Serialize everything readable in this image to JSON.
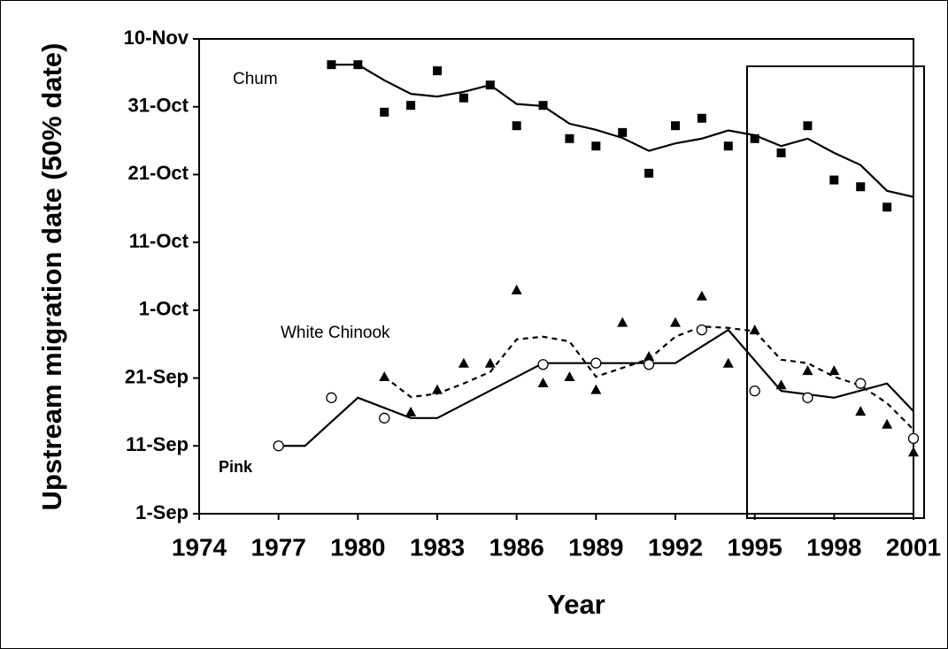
{
  "chart_data": {
    "type": "scatter",
    "xlabel": "Year",
    "ylabel": "Upstream migration date (50% date)",
    "xlim": [
      1974,
      2001
    ],
    "xticks": [
      1974,
      1977,
      1980,
      1983,
      1986,
      1989,
      1992,
      1995,
      1998,
      2001
    ],
    "ylim": [
      0,
      70
    ],
    "yticks": [
      {
        "value": 0,
        "label": "1-Sep"
      },
      {
        "value": 10,
        "label": "11-Sep"
      },
      {
        "value": 20,
        "label": "21-Sep"
      },
      {
        "value": 30,
        "label": "1-Oct"
      },
      {
        "value": 40,
        "label": "11-Oct"
      },
      {
        "value": 50,
        "label": "21-Oct"
      },
      {
        "value": 60,
        "label": "31-Oct"
      },
      {
        "value": 70,
        "label": "10-Nov"
      }
    ],
    "series": [
      {
        "name": "Chum",
        "color": "#000000",
        "marker": "square",
        "trend_style": "solid",
        "x": [
          1979,
          1980,
          1981,
          1982,
          1983,
          1984,
          1985,
          1986,
          1987,
          1988,
          1989,
          1990,
          1991,
          1992,
          1993,
          1994,
          1995,
          1996,
          1997,
          1998,
          1999,
          2000
        ],
        "values": [
          66.2,
          66.2,
          59.2,
          60.2,
          65.3,
          61.3,
          63.2,
          57.2,
          60.2,
          55.3,
          54.2,
          56.2,
          50.2,
          57.2,
          58.3,
          54.2,
          55.3,
          53.2,
          57.2,
          49.2,
          48.2,
          45.2
        ],
        "trend_x": [
          1979,
          1980,
          1981,
          1982,
          1983,
          1984,
          1985,
          1986,
          1987,
          1988,
          1989,
          1990,
          1991,
          1992,
          1993,
          1994,
          1995,
          1996,
          1997,
          1998,
          1999,
          2000,
          2001
        ],
        "trend": [
          66.2,
          66.2,
          63.9,
          61.9,
          61.5,
          62.2,
          63.2,
          60.4,
          60.1,
          57.5,
          56.6,
          55.4,
          53.5,
          54.6,
          55.3,
          56.5,
          55.8,
          54.2,
          55.3,
          53.2,
          51.4,
          47.6,
          46.7
        ]
      },
      {
        "name": "White Chinook",
        "color": "#000000",
        "marker": "triangle",
        "trend_style": "dashed",
        "x": [
          1981,
          1982,
          1983,
          1984,
          1985,
          1986,
          1987,
          1988,
          1989,
          1990,
          1991,
          1992,
          1993,
          1994,
          1995,
          1996,
          1997,
          1998,
          1999,
          2000,
          2001
        ],
        "values": [
          20.2,
          15.0,
          18.3,
          22.2,
          22.2,
          33.0,
          19.3,
          20.2,
          18.3,
          28.2,
          23.2,
          28.2,
          32.1,
          22.2,
          27.1,
          19.0,
          21.1,
          21.1,
          15.1,
          13.2,
          9.1
        ],
        "trend_x": [
          1981,
          1982,
          1983,
          1984,
          1985,
          1986,
          1987,
          1988,
          1989,
          1990,
          1991,
          1992,
          1993,
          1994,
          1995,
          1996,
          1997,
          1998,
          1999,
          2000,
          2001
        ],
        "trend": [
          20.2,
          17.2,
          17.7,
          19.2,
          20.9,
          25.7,
          26.1,
          25.4,
          20.2,
          21.5,
          22.8,
          26.1,
          27.6,
          27.4,
          26.9,
          22.7,
          22.2,
          20.2,
          18.9,
          16.3,
          12.4
        ]
      },
      {
        "name": "Pink",
        "color": "#000000",
        "marker": "circle",
        "trend_style": "solid",
        "x": [
          1977,
          1979,
          1981,
          1987,
          1989,
          1991,
          1993,
          1995,
          1997,
          1999,
          2001
        ],
        "values": [
          10.0,
          17.1,
          14.1,
          22.0,
          22.2,
          22.0,
          27.1,
          18.1,
          17.1,
          19.2,
          11.1
        ],
        "trend_x": [
          1977,
          1978,
          1980,
          1982,
          1983,
          1987,
          1992,
          1994,
          1996,
          1998,
          2000,
          2001
        ],
        "trend": [
          10.0,
          10.0,
          17.1,
          14.1,
          14.1,
          22.2,
          22.2,
          27.1,
          18.1,
          17.1,
          19.2,
          15.1
        ]
      }
    ]
  }
}
